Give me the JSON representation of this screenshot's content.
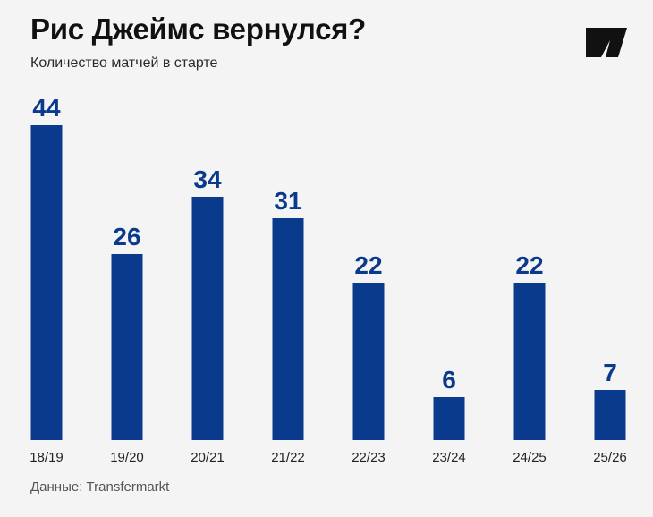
{
  "title": "Рис Джеймс вернулся?",
  "subtitle": "Количество матчей в старте",
  "source": "Данные: Transfermarkt",
  "colors": {
    "bar": "#0a3a8c",
    "label": "#0a3a8c",
    "background": "#f4f4f4",
    "logo": "#111111"
  },
  "logo_icon": "publisher-logo-icon",
  "chart_data": {
    "type": "bar",
    "title": "Рис Джеймс вернулся?",
    "subtitle": "Количество матчей в старте",
    "categories": [
      "18/19",
      "19/20",
      "20/21",
      "21/22",
      "22/23",
      "23/24",
      "24/25",
      "25/26"
    ],
    "values": [
      44,
      26,
      34,
      31,
      22,
      6,
      22,
      7
    ],
    "xlabel": "",
    "ylabel": "",
    "ylim": [
      0,
      44
    ],
    "grid": false,
    "legend": "none",
    "data_labels": true
  }
}
